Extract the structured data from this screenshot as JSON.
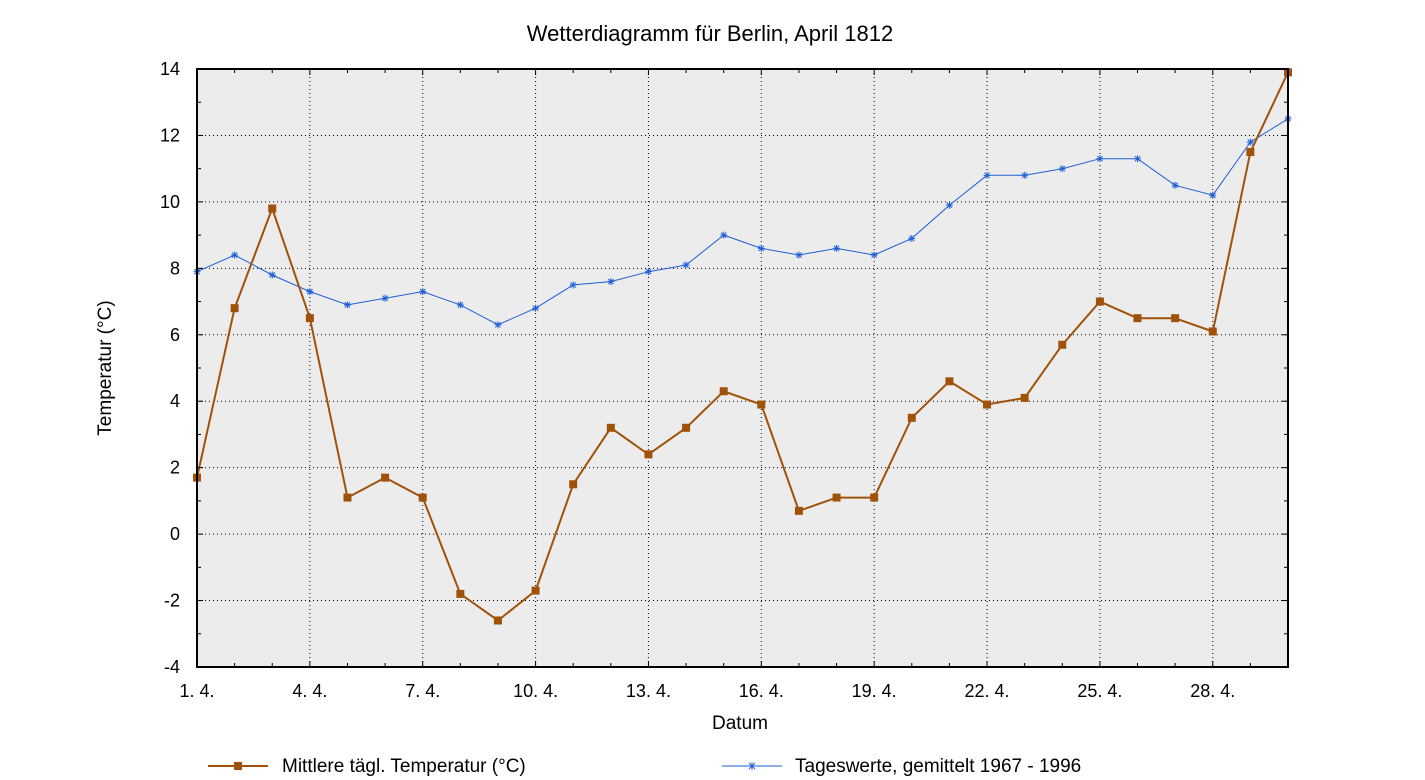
{
  "chart_data": {
    "type": "line",
    "title": "Wetterdiagramm für Berlin, April 1812",
    "xlabel": "Datum",
    "ylabel": "Temperatur (°C)",
    "x": [
      1,
      2,
      3,
      4,
      5,
      6,
      7,
      8,
      9,
      10,
      11,
      12,
      13,
      14,
      15,
      16,
      17,
      18,
      19,
      20,
      21,
      22,
      23,
      24,
      25,
      26,
      27,
      28,
      29,
      30
    ],
    "xlim": [
      1,
      30
    ],
    "ylim": [
      -4,
      14
    ],
    "x_ticks": [
      1,
      4,
      7,
      10,
      13,
      16,
      19,
      22,
      25,
      28
    ],
    "x_tick_labels": [
      "1. 4.",
      "4. 4.",
      "7. 4.",
      "10. 4.",
      "13. 4.",
      "16. 4.",
      "19. 4.",
      "22. 4.",
      "25. 4.",
      "28. 4."
    ],
    "y_ticks": [
      -4,
      -2,
      0,
      2,
      4,
      6,
      8,
      10,
      12,
      14
    ],
    "y_tick_labels": [
      "-4",
      "-2",
      "0",
      "2",
      "4",
      "6",
      "8",
      "10",
      "12",
      "14"
    ],
    "grid": true,
    "legend_position": "bottom",
    "series": [
      {
        "name": "Mittlere tägl. Temperatur (°C)",
        "color": "#a0520a",
        "marker": "square",
        "values": [
          1.7,
          6.8,
          9.8,
          6.5,
          1.1,
          1.7,
          1.1,
          -1.8,
          -2.6,
          -1.7,
          1.5,
          3.2,
          2.4,
          3.2,
          4.3,
          3.9,
          0.7,
          1.1,
          1.1,
          3.5,
          4.6,
          3.9,
          4.1,
          5.7,
          7.0,
          6.5,
          6.5,
          6.1,
          11.5,
          13.9
        ]
      },
      {
        "name": "Tageswerte, gemittelt 1967 - 1996",
        "color": "#1f5fd6",
        "marker": "star",
        "values": [
          7.9,
          8.4,
          7.8,
          7.3,
          6.9,
          7.1,
          7.3,
          6.9,
          6.3,
          6.8,
          7.5,
          7.6,
          7.9,
          8.1,
          9.0,
          8.6,
          8.4,
          8.6,
          8.4,
          8.9,
          9.9,
          10.8,
          10.8,
          11.0,
          11.3,
          11.3,
          10.5,
          10.2,
          11.8,
          12.5
        ]
      }
    ]
  }
}
